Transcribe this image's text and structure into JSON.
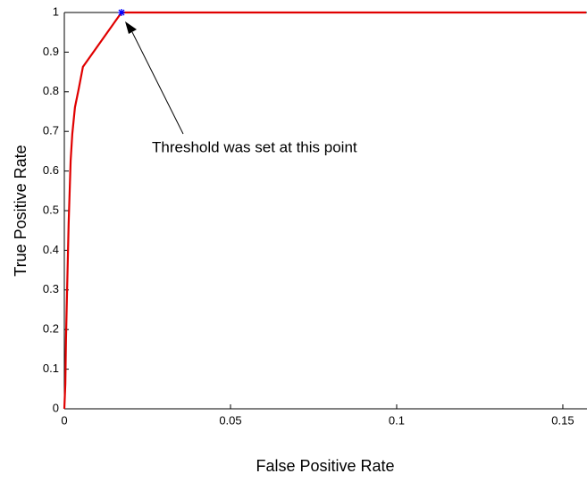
{
  "chart_data": {
    "type": "line",
    "xlabel": "False Positive Rate",
    "ylabel": "True Positive Rate",
    "annotation": "Threshold was set at this point",
    "xlim": [
      0,
      0.157
    ],
    "ylim": [
      0,
      1
    ],
    "xticks": [
      0,
      0.05,
      0.1,
      0.15
    ],
    "yticks": [
      0,
      0.1,
      0.2,
      0.3,
      0.4,
      0.5,
      0.6,
      0.7,
      0.8,
      0.9,
      1
    ],
    "series": [
      {
        "color": "#e00000",
        "marker": "none",
        "x": [
          0,
          0.0003,
          0.0005,
          0.0008,
          0.0013,
          0.0019,
          0.0024,
          0.0032,
          0.0043,
          0.0056,
          0.0172,
          0.157
        ],
        "y": [
          0,
          0.063,
          0.176,
          0.288,
          0.468,
          0.626,
          0.694,
          0.761,
          0.806,
          0.863,
          1,
          1
        ]
      },
      {
        "color": "#0000ff",
        "marker": "star",
        "x": [
          0.0172
        ],
        "y": [
          1
        ]
      }
    ]
  }
}
